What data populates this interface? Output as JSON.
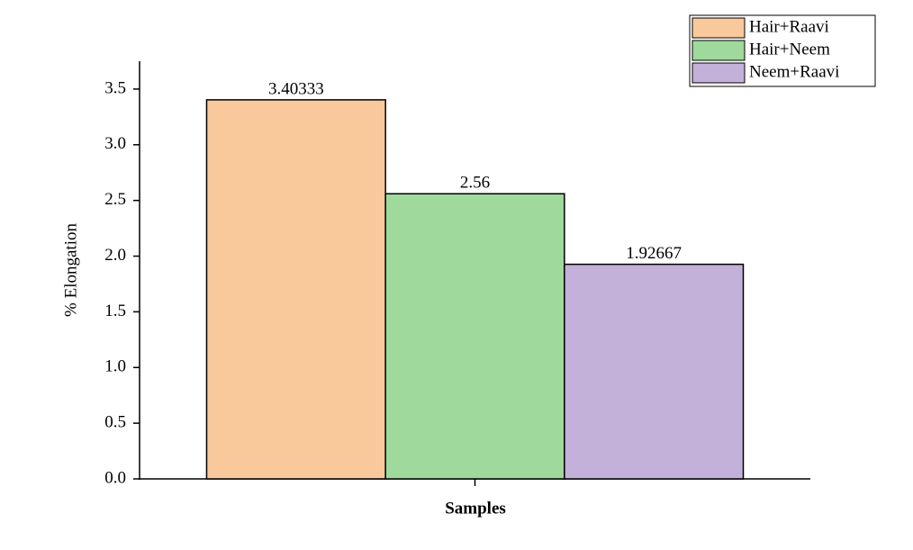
{
  "chart_data": {
    "type": "bar",
    "x_label": "Samples",
    "y_label": "% Elongation",
    "categories": [
      null
    ],
    "series": [
      {
        "name": "Hair+Raavi",
        "color": "#f9c89b",
        "values": [
          3.40333
        ]
      },
      {
        "name": "Hair+Neem",
        "color": "#9fd99b",
        "values": [
          2.56
        ]
      },
      {
        "name": "Neem+Raavi",
        "color": "#c3b1d9",
        "values": [
          1.92667
        ]
      }
    ],
    "ylim": [
      0,
      3.75
    ],
    "yticks": [
      {
        "value": 0,
        "label": "0.0"
      },
      0.5,
      {
        "value": 1,
        "label": "1.0"
      },
      1.5,
      {
        "value": 2,
        "label": "2.0"
      },
      2.5,
      {
        "value": 3,
        "label": "3.0"
      },
      3.5
    ],
    "grid": false,
    "legend": "upper right"
  }
}
